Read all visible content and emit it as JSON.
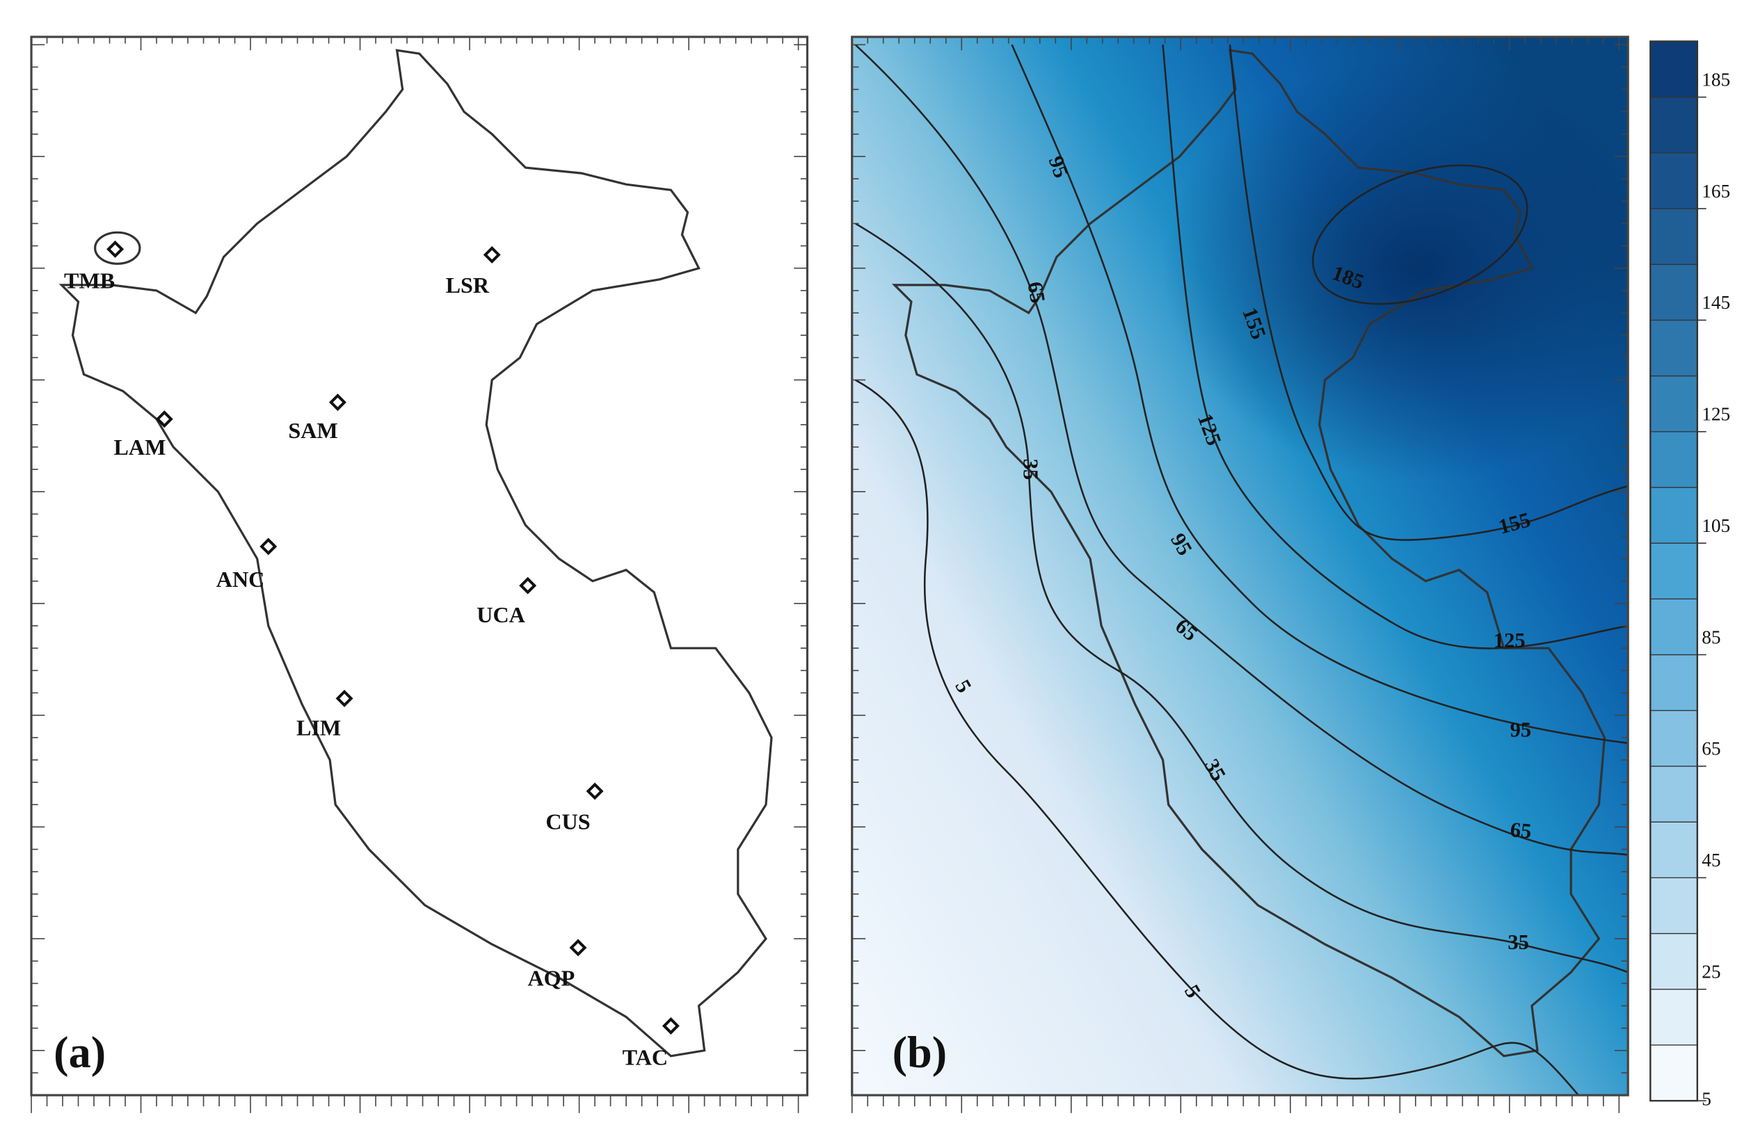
{
  "panels": {
    "a": {
      "label": "(a)",
      "stations": [
        "TMB",
        "LSR",
        "LAM",
        "SAM",
        "ANC",
        "UCA",
        "LIM",
        "CUS",
        "AQP",
        "TAC"
      ]
    },
    "b": {
      "label": "(b)",
      "contour_labels": [
        95,
        65,
        35,
        5,
        5,
        35,
        65,
        95,
        125,
        155,
        185,
        155,
        125,
        95,
        65,
        35
      ],
      "colorbar": {
        "range": [
          5,
          195
        ],
        "ticks": [
          5,
          25,
          45,
          65,
          85,
          105,
          125,
          145,
          165,
          185
        ]
      }
    }
  }
}
